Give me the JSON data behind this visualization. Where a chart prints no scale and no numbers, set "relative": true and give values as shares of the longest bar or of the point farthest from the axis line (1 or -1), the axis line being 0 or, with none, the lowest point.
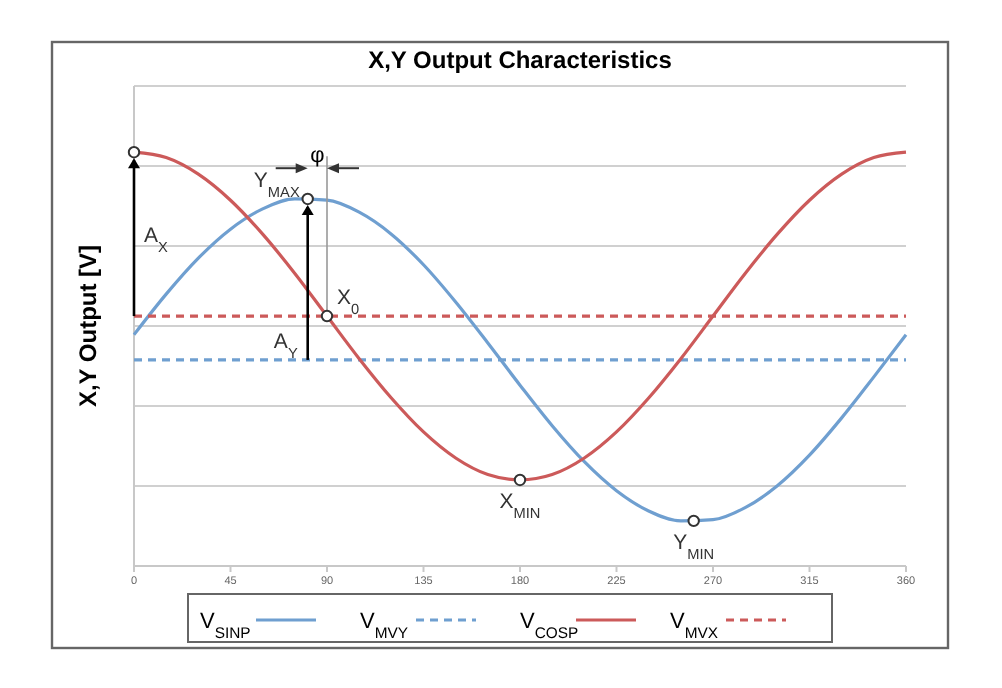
{
  "chart_data": {
    "type": "line",
    "title": "X,Y Output Characteristics",
    "ylabel": "X,Y Output [V]",
    "relative": true,
    "x": [
      0,
      15,
      30,
      45,
      60,
      75,
      90,
      105,
      120,
      135,
      150,
      165,
      180,
      195,
      210,
      225,
      240,
      255,
      270,
      285,
      300,
      315,
      330,
      345,
      360
    ],
    "xlim": [
      0,
      360
    ],
    "xticks": [
      0,
      45,
      90,
      135,
      180,
      225,
      270,
      315,
      360
    ],
    "series": [
      {
        "name": "V$_{SINP}$",
        "color": "#6f9fd0",
        "line_style": "solid",
        "values": [
          0.559,
          0.657,
          0.744,
          0.814,
          0.863,
          0.887,
          0.884,
          0.855,
          0.802,
          0.728,
          0.638,
          0.539,
          0.437,
          0.339,
          0.252,
          0.182,
          0.133,
          0.109,
          0.112,
          0.141,
          0.194,
          0.268,
          0.358,
          0.457,
          0.559
        ]
      },
      {
        "name": "V$_{MVY}$",
        "color": "#6f9fd0",
        "line_style": "dashed",
        "values": [
          0.498,
          0.498,
          0.498,
          0.498,
          0.498,
          0.498,
          0.498,
          0.498,
          0.498,
          0.498,
          0.498,
          0.498,
          0.498,
          0.498,
          0.498,
          0.498,
          0.498,
          0.498,
          0.498,
          0.498,
          0.498,
          0.498,
          0.498,
          0.498,
          0.498
        ]
      },
      {
        "name": "V$_{COSP}$",
        "color": "#cc5a5a",
        "line_style": "solid",
        "values": [
          1.0,
          0.987,
          0.947,
          0.884,
          0.802,
          0.707,
          0.604,
          0.501,
          0.406,
          0.324,
          0.261,
          0.221,
          0.208,
          0.221,
          0.261,
          0.324,
          0.406,
          0.501,
          0.604,
          0.707,
          0.802,
          0.884,
          0.947,
          0.987,
          1.0
        ]
      },
      {
        "name": "V$_{MVX}$",
        "color": "#cc5a5a",
        "line_style": "dashed",
        "values": [
          0.604,
          0.604,
          0.604,
          0.604,
          0.604,
          0.604,
          0.604,
          0.604,
          0.604,
          0.604,
          0.604,
          0.604,
          0.604,
          0.604,
          0.604,
          0.604,
          0.604,
          0.604,
          0.604,
          0.604,
          0.604,
          0.604,
          0.604,
          0.604,
          0.604
        ]
      }
    ],
    "annotations": [
      "A$_{X}$",
      {
        "text": "Y$_{MAX}$",
        "x": 81,
        "y": 0.887
      },
      {
        "text": "X$_{0}$",
        "x": 90,
        "y": 0.604
      },
      "A$_{Y}$",
      {
        "text": "X$_{MIN}$",
        "x": 180,
        "y": 0.208
      },
      {
        "text": "Y$_{MIN}$",
        "x": 261,
        "y": 0.109
      },
      "φ"
    ],
    "grid": "y",
    "legend": "bottom",
    "tick_labels": "x",
    "marker": "none"
  }
}
